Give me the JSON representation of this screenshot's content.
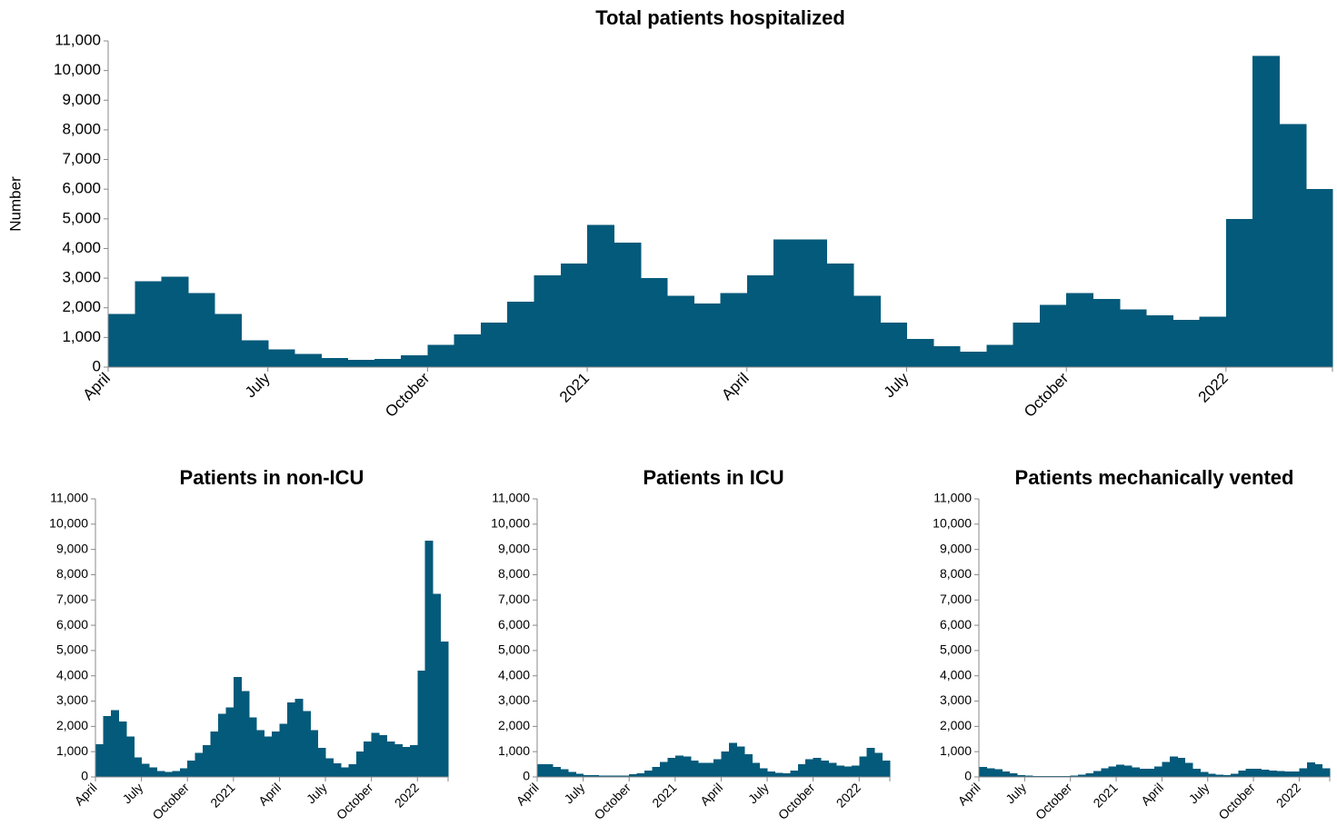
{
  "chart_data": [
    {
      "type": "bar",
      "title": "Total patients hospitalized",
      "ylabel": "Number",
      "color": "#045a7a",
      "categories": [
        "April",
        null,
        null,
        null,
        null,
        null,
        "July",
        null,
        null,
        null,
        null,
        null,
        "October",
        null,
        null,
        null,
        null,
        null,
        "2021",
        null,
        null,
        null,
        null,
        null,
        "April",
        null,
        null,
        null,
        null,
        null,
        "July",
        null,
        null,
        null,
        null,
        null,
        "October",
        null,
        null,
        null,
        null,
        null,
        "2022",
        null,
        null,
        null
      ],
      "values": [
        1800,
        2900,
        3050,
        2500,
        1800,
        900,
        600,
        450,
        300,
        250,
        280,
        400,
        750,
        1100,
        1500,
        2200,
        3100,
        3500,
        4800,
        4200,
        3000,
        2400,
        2150,
        2500,
        3100,
        4300,
        4300,
        3500,
        2400,
        1500,
        950,
        700,
        520,
        750,
        1500,
        2100,
        2500,
        2300,
        1950,
        1750,
        1600,
        1700,
        5000,
        10500,
        8200,
        6000
      ],
      "ylim": [
        0,
        11000
      ],
      "yticks": [
        0,
        {
          "value": 1000,
          "label": "1,000"
        },
        {
          "value": 2000,
          "label": "2,000"
        },
        {
          "value": 3000,
          "label": "3,000"
        },
        {
          "value": 4000,
          "label": "4,000"
        },
        {
          "value": 5000,
          "label": "5,000"
        },
        {
          "value": 6000,
          "label": "6,000"
        },
        {
          "value": 7000,
          "label": "7,000"
        },
        {
          "value": 8000,
          "label": "8,000"
        },
        {
          "value": 9000,
          "label": "9,000"
        },
        {
          "value": 10000,
          "label": "10,000"
        },
        {
          "value": 11000,
          "label": "11,000"
        }
      ]
    },
    {
      "type": "bar",
      "title": "Patients in non-ICU",
      "color": "#045a7a",
      "categories": [
        "April",
        null,
        null,
        null,
        null,
        null,
        "July",
        null,
        null,
        null,
        null,
        null,
        "October",
        null,
        null,
        null,
        null,
        null,
        "2021",
        null,
        null,
        null,
        null,
        null,
        "April",
        null,
        null,
        null,
        null,
        null,
        "July",
        null,
        null,
        null,
        null,
        null,
        "October",
        null,
        null,
        null,
        null,
        null,
        "2022",
        null,
        null,
        null
      ],
      "values": [
        1300,
        2400,
        2650,
        2200,
        1600,
        780,
        520,
        380,
        240,
        200,
        230,
        340,
        650,
        950,
        1250,
        1800,
        2500,
        2750,
        3950,
        3400,
        2350,
        1850,
        1600,
        1800,
        2100,
        2950,
        3100,
        2600,
        1850,
        1150,
        730,
        540,
        370,
        500,
        1000,
        1400,
        1750,
        1650,
        1400,
        1300,
        1180,
        1250,
        4200,
        9350,
        7250,
        5350
      ],
      "ylim": [
        0,
        11000
      ],
      "yticks": [
        0,
        {
          "value": 1000,
          "label": "1,000"
        },
        {
          "value": 2000,
          "label": "2,000"
        },
        {
          "value": 3000,
          "label": "3,000"
        },
        {
          "value": 4000,
          "label": "4,000"
        },
        {
          "value": 5000,
          "label": "5,000"
        },
        {
          "value": 6000,
          "label": "6,000"
        },
        {
          "value": 7000,
          "label": "7,000"
        },
        {
          "value": 8000,
          "label": "8,000"
        },
        {
          "value": 9000,
          "label": "9,000"
        },
        {
          "value": 10000,
          "label": "10,000"
        },
        {
          "value": 11000,
          "label": "11,000"
        }
      ]
    },
    {
      "type": "bar",
      "title": "Patients in ICU",
      "color": "#045a7a",
      "categories": [
        "April",
        null,
        null,
        null,
        null,
        null,
        "July",
        null,
        null,
        null,
        null,
        null,
        "October",
        null,
        null,
        null,
        null,
        null,
        "2021",
        null,
        null,
        null,
        null,
        null,
        "April",
        null,
        null,
        null,
        null,
        null,
        "July",
        null,
        null,
        null,
        null,
        null,
        "October",
        null,
        null,
        null,
        null,
        null,
        "2022",
        null,
        null,
        null
      ],
      "values": [
        500,
        500,
        400,
        300,
        200,
        120,
        80,
        70,
        60,
        50,
        50,
        60,
        100,
        150,
        250,
        400,
        600,
        750,
        850,
        800,
        650,
        550,
        550,
        700,
        1000,
        1350,
        1200,
        900,
        550,
        350,
        220,
        160,
        150,
        250,
        500,
        700,
        750,
        650,
        550,
        450,
        420,
        450,
        800,
        1150,
        950,
        650
      ],
      "ylim": [
        0,
        11000
      ],
      "yticks": [
        0,
        {
          "value": 1000,
          "label": "1,000"
        },
        {
          "value": 2000,
          "label": "2,000"
        },
        {
          "value": 3000,
          "label": "3,000"
        },
        {
          "value": 4000,
          "label": "4,000"
        },
        {
          "value": 5000,
          "label": "5,000"
        },
        {
          "value": 6000,
          "label": "6,000"
        },
        {
          "value": 7000,
          "label": "7,000"
        },
        {
          "value": 8000,
          "label": "8,000"
        },
        {
          "value": 9000,
          "label": "9,000"
        },
        {
          "value": 10000,
          "label": "10,000"
        },
        {
          "value": 11000,
          "label": "11,000"
        }
      ]
    },
    {
      "type": "bar",
      "title": "Patients mechanically vented",
      "color": "#045a7a",
      "categories": [
        "April",
        null,
        null,
        null,
        null,
        null,
        "July",
        null,
        null,
        null,
        null,
        null,
        "October",
        null,
        null,
        null,
        null,
        null,
        "2021",
        null,
        null,
        null,
        null,
        null,
        "April",
        null,
        null,
        null,
        null,
        null,
        "July",
        null,
        null,
        null,
        null,
        null,
        "October",
        null,
        null,
        null,
        null,
        null,
        "2022",
        null,
        null,
        null
      ],
      "values": [
        400,
        350,
        300,
        220,
        150,
        80,
        50,
        40,
        35,
        30,
        30,
        35,
        60,
        90,
        150,
        230,
        350,
        420,
        480,
        450,
        380,
        320,
        320,
        420,
        600,
        800,
        750,
        550,
        330,
        200,
        120,
        90,
        80,
        120,
        250,
        320,
        320,
        280,
        250,
        230,
        220,
        220,
        350,
        580,
        500,
        350
      ],
      "ylim": [
        0,
        11000
      ],
      "yticks": [
        0,
        {
          "value": 1000,
          "label": "1,000"
        },
        {
          "value": 2000,
          "label": "2,000"
        },
        {
          "value": 3000,
          "label": "3,000"
        },
        {
          "value": 4000,
          "label": "4,000"
        },
        {
          "value": 5000,
          "label": "5,000"
        },
        {
          "value": 6000,
          "label": "6,000"
        },
        {
          "value": 7000,
          "label": "7,000"
        },
        {
          "value": 8000,
          "label": "8,000"
        },
        {
          "value": 9000,
          "label": "9,000"
        },
        {
          "value": 10000,
          "label": "10,000"
        },
        {
          "value": 11000,
          "label": "11,000"
        }
      ]
    }
  ]
}
